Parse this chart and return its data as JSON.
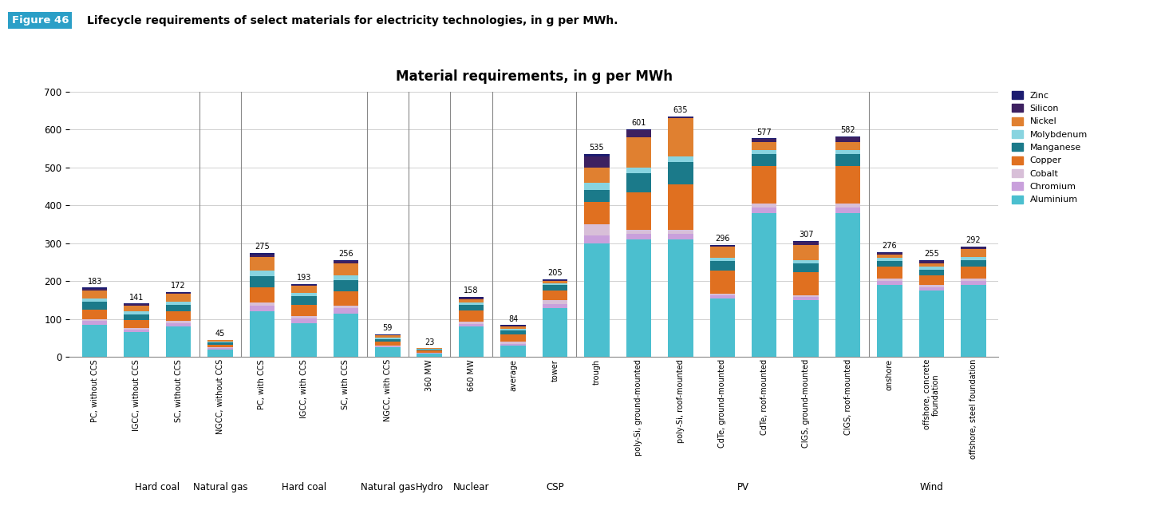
{
  "title": "Material requirements, in g per MWh",
  "header_label": "Figure 46",
  "header_text": "Lifecycle requirements of select materials for electricity technologies, in g per MWh.",
  "materials": [
    "Aluminium",
    "Chromium",
    "Cobalt",
    "Copper",
    "Manganese",
    "Molybdenum",
    "Nickel",
    "Silicon",
    "Zinc"
  ],
  "colors": {
    "Aluminium": "#4BBFCF",
    "Chromium": "#C9A0DC",
    "Cobalt": "#D8BFD8",
    "Copper": "#E07020",
    "Manganese": "#1B7A8A",
    "Molybdenum": "#88D4E0",
    "Nickel": "#E08030",
    "Silicon": "#3D2060",
    "Zinc": "#1C1C70"
  },
  "categories": [
    "PC, without CCS",
    "IGCC, without CCS",
    "SC, without CCS",
    "NGCC, without CCS",
    "PC, with CCS",
    "IGCC, with CCS",
    "SC, with CCS",
    "NGCC, with CCS",
    "360 MW",
    "660 MW",
    "average",
    "tower",
    "trough",
    "poly-Si, ground-mounted",
    "poly-Si, roof-mounted",
    "CdTe, ground-mounted",
    "CdTe, roof-mounted",
    "CIGS, ground-mounted",
    "CIGS, roof-mounted",
    "onshore",
    "offshore, concrete\nfoundation",
    "offshore, steel foundation"
  ],
  "group_info": [
    [
      "Hard coal",
      [
        0,
        1,
        2,
        3
      ]
    ],
    [
      "Natural gas",
      [
        3
      ]
    ],
    [
      "Hard coal",
      [
        4,
        5,
        6
      ]
    ],
    [
      "Natural gas",
      [
        7
      ]
    ],
    [
      "Hydro",
      [
        8
      ]
    ],
    [
      "Nuclear",
      [
        9
      ]
    ],
    [
      "CSP",
      [
        10,
        11,
        12
      ]
    ],
    [
      "PV",
      [
        13,
        14,
        15,
        16,
        17,
        18
      ]
    ],
    [
      "Wind",
      [
        19,
        20,
        21
      ]
    ]
  ],
  "totals": [
    183,
    141,
    172,
    45,
    275,
    193,
    256,
    59,
    23,
    158,
    84,
    205,
    535,
    601,
    635,
    296,
    577,
    307,
    582,
    276,
    255,
    292
  ],
  "bar_data": {
    "Aluminium": [
      85,
      65,
      80,
      20,
      120,
      90,
      115,
      25,
      10,
      80,
      30,
      130,
      300,
      310,
      310,
      155,
      380,
      150,
      380,
      190,
      175,
      190
    ],
    "Chromium": [
      10,
      8,
      10,
      3,
      15,
      12,
      14,
      3,
      1,
      8,
      5,
      10,
      20,
      15,
      15,
      8,
      15,
      8,
      15,
      10,
      8,
      10
    ],
    "Cobalt": [
      5,
      4,
      5,
      2,
      8,
      6,
      7,
      2,
      1,
      5,
      5,
      10,
      30,
      10,
      10,
      5,
      10,
      5,
      10,
      8,
      7,
      8
    ],
    "Copper": [
      25,
      20,
      25,
      8,
      40,
      30,
      38,
      10,
      5,
      30,
      20,
      25,
      60,
      100,
      120,
      60,
      100,
      60,
      100,
      30,
      25,
      30
    ],
    "Manganese": [
      20,
      15,
      18,
      5,
      30,
      22,
      28,
      8,
      3,
      15,
      10,
      15,
      30,
      50,
      60,
      25,
      30,
      25,
      30,
      15,
      15,
      18
    ],
    "Molybdenum": [
      10,
      8,
      9,
      3,
      15,
      10,
      13,
      3,
      1,
      5,
      5,
      5,
      20,
      15,
      15,
      8,
      12,
      8,
      12,
      8,
      8,
      8
    ],
    "Nickel": [
      20,
      16,
      20,
      4,
      35,
      18,
      32,
      6,
      2,
      10,
      5,
      5,
      40,
      80,
      100,
      30,
      20,
      40,
      20,
      10,
      10,
      20
    ],
    "Silicon": [
      5,
      3,
      3,
      0,
      8,
      3,
      7,
      1,
      0,
      3,
      3,
      3,
      30,
      18,
      2,
      3,
      8,
      8,
      12,
      3,
      5,
      5
    ],
    "Zinc": [
      3,
      2,
      2,
      0,
      4,
      2,
      2,
      1,
      0,
      2,
      1,
      2,
      5,
      3,
      3,
      2,
      2,
      3,
      3,
      2,
      2,
      3
    ]
  },
  "ylim": [
    0,
    700
  ],
  "yticks": [
    0,
    100,
    200,
    300,
    400,
    500,
    600,
    700
  ],
  "background_color": "#ffffff",
  "separators": [
    3,
    4,
    7,
    8,
    9,
    10,
    12,
    19
  ]
}
